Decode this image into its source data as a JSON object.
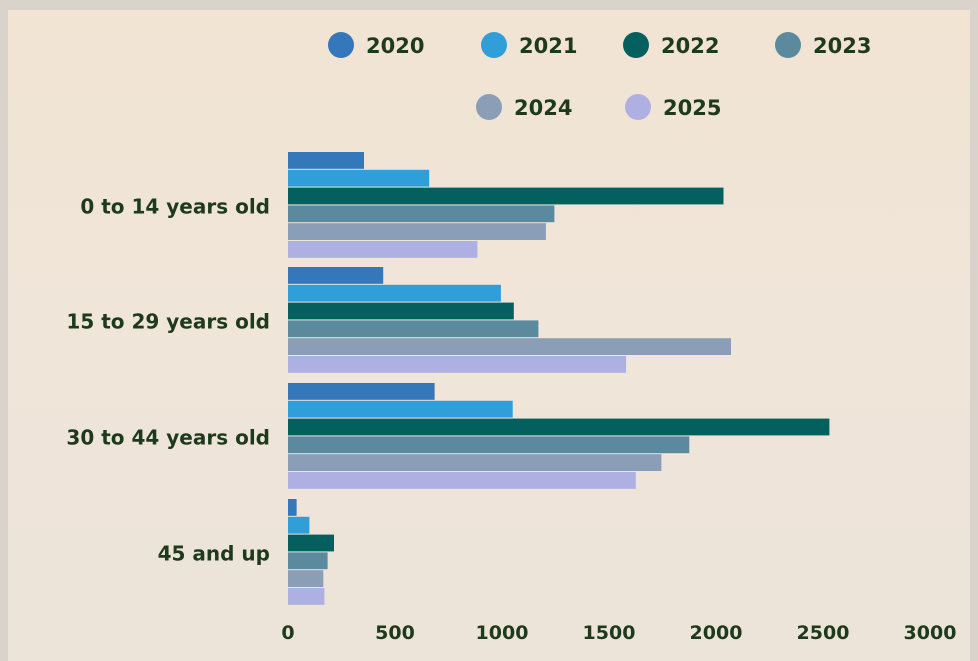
{
  "chart_data": {
    "type": "bar",
    "orientation": "horizontal",
    "categories": [
      "0 to 14 years old",
      "15 to 29 years old",
      "30 to 44 years old",
      "45 and up"
    ],
    "series": [
      {
        "name": "2020",
        "color": "#3477bb",
        "values": [
          355,
          445,
          685,
          40
        ]
      },
      {
        "name": "2021",
        "color": "#2f9ed9",
        "values": [
          660,
          995,
          1050,
          100
        ]
      },
      {
        "name": "2022",
        "color": "#03605f",
        "values": [
          2035,
          1055,
          2530,
          215
        ]
      },
      {
        "name": "2023",
        "color": "#5b8a9e",
        "values": [
          1245,
          1170,
          1875,
          185
        ]
      },
      {
        "name": "2024",
        "color": "#8a9eb7",
        "values": [
          1205,
          2070,
          1745,
          165
        ]
      },
      {
        "name": "2025",
        "color": "#adb0e0",
        "values": [
          885,
          1580,
          1625,
          170
        ]
      }
    ],
    "x_ticks": [
      "0",
      "500",
      "1000",
      "1500",
      "2000",
      "2500",
      "3000"
    ],
    "xlim": [
      0,
      3000
    ],
    "grid": false,
    "legend_position": "top",
    "title": "",
    "xlabel": "",
    "ylabel": ""
  }
}
